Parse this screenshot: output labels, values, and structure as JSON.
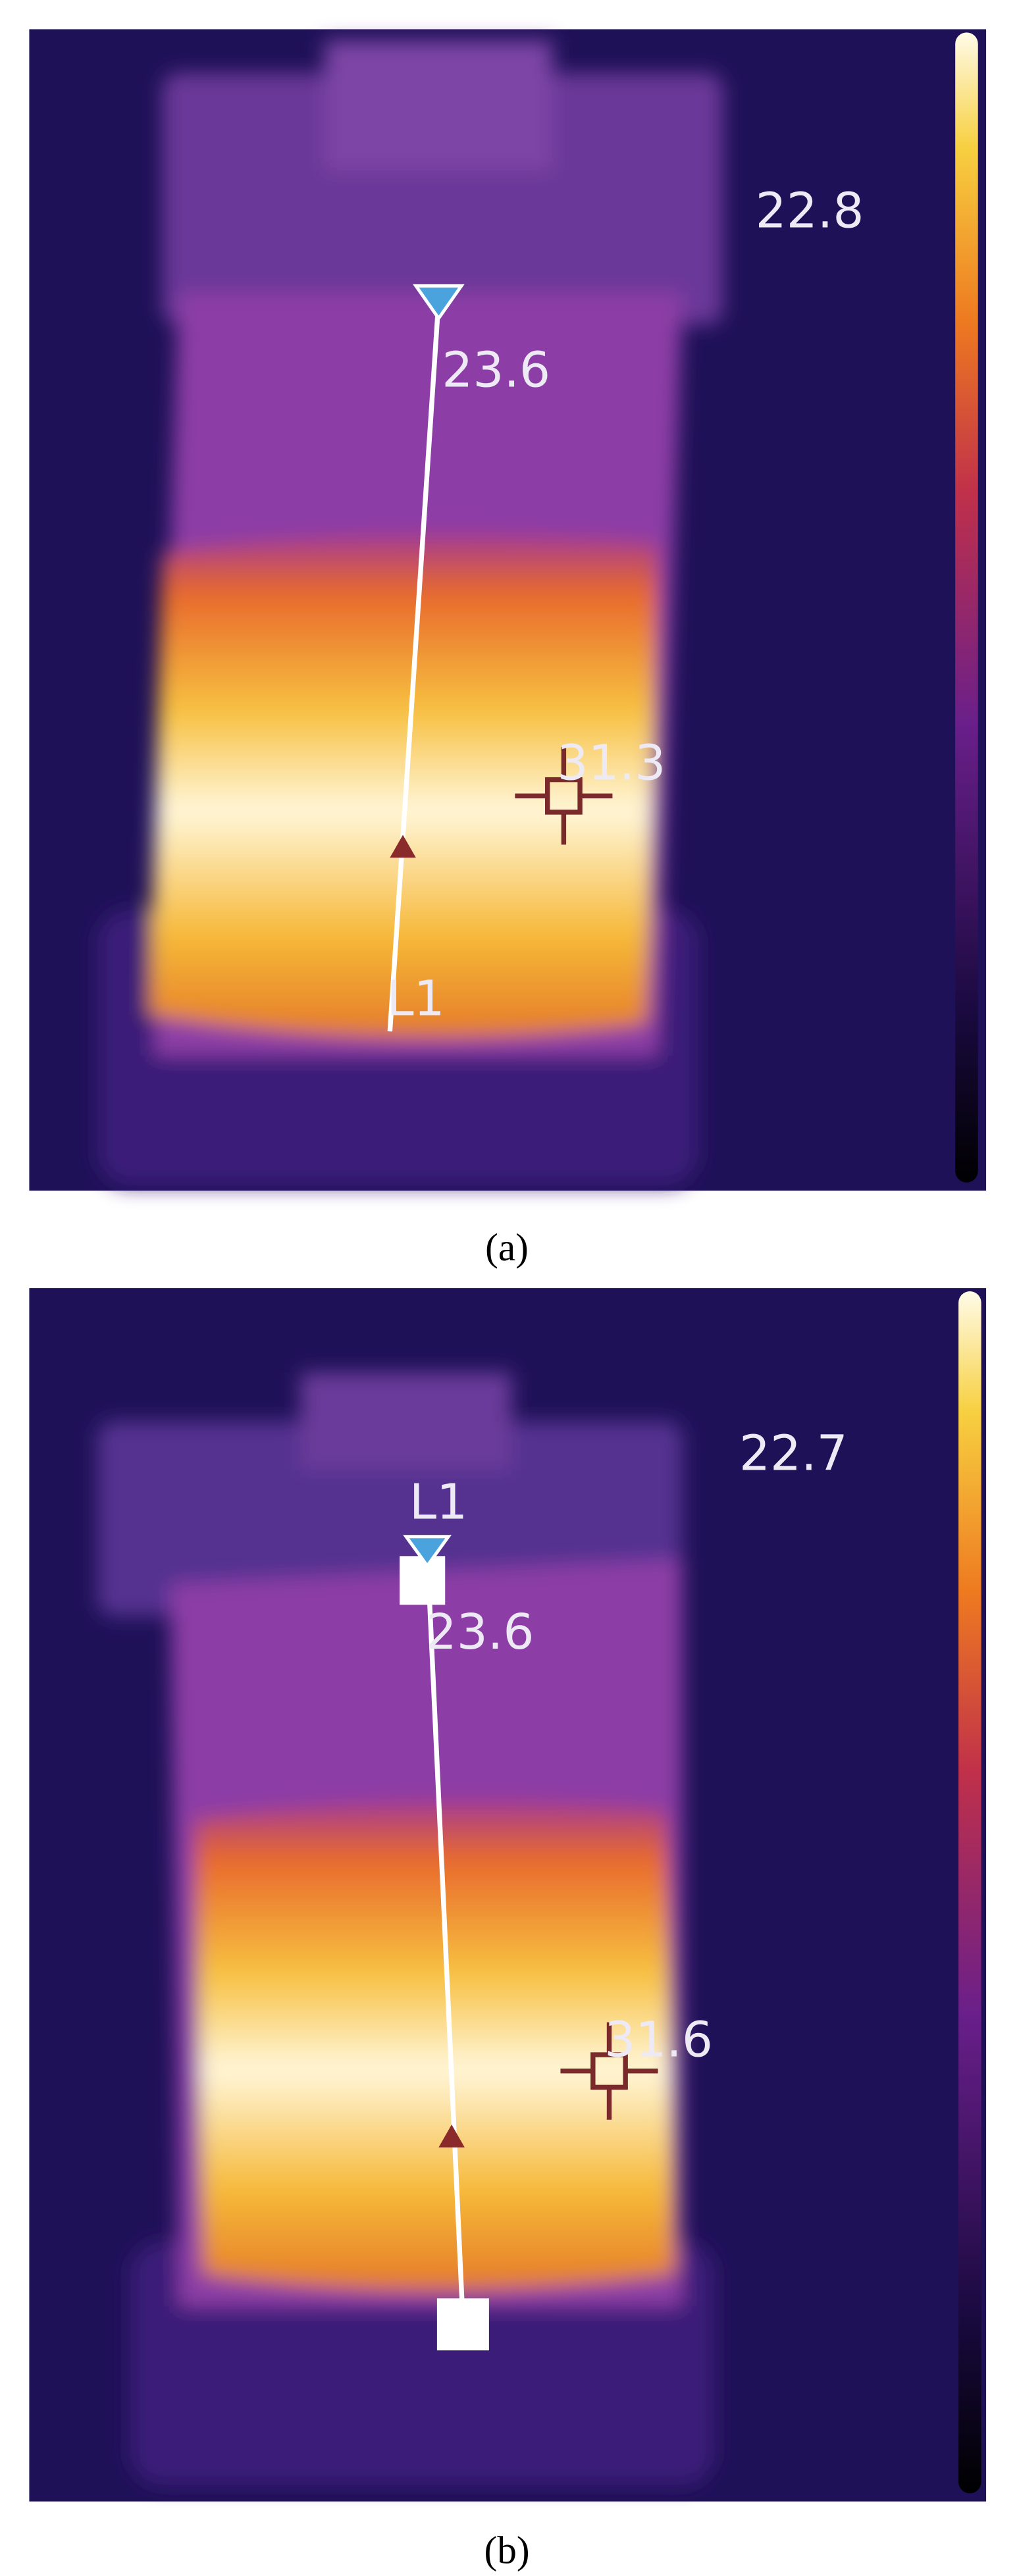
{
  "panels": [
    {
      "caption": "(a)",
      "max_label": "22.8",
      "marker_value": "23.6",
      "spot_value": "31.3",
      "line_label": "L1"
    },
    {
      "caption": "(b)",
      "max_label": "22.7",
      "marker_value": "23.6",
      "spot_value": "31.6",
      "line_label": "L1"
    }
  ]
}
